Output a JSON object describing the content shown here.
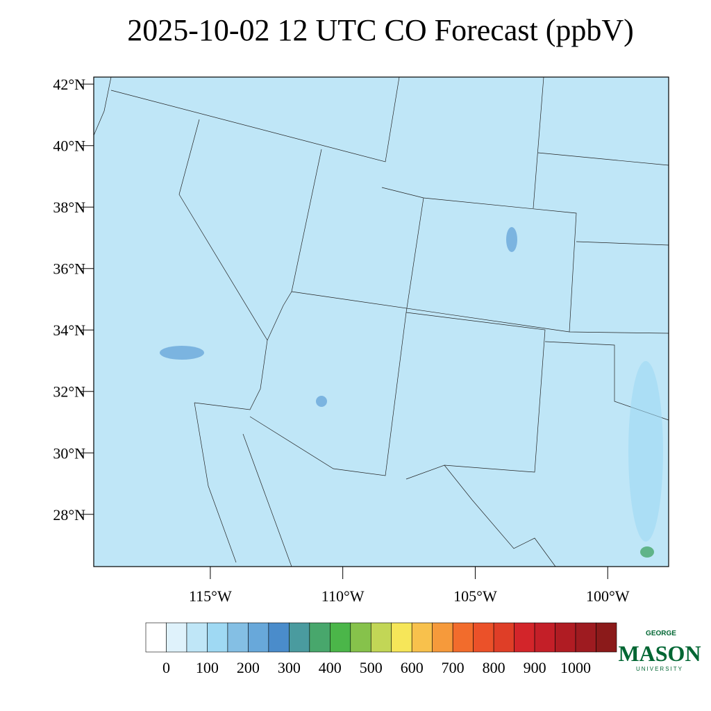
{
  "chart_data": {
    "type": "map",
    "title": "2025-10-02 12 UTC CO Forecast (ppbV)",
    "xlim": [
      -119.4,
      -97.7
    ],
    "ylim": [
      26.3,
      42.23
    ],
    "xticks": [
      {
        "value": -115,
        "label": "115°W"
      },
      {
        "value": -110,
        "label": "110°W"
      },
      {
        "value": -105,
        "label": "105°W"
      },
      {
        "value": -100,
        "label": "100°W"
      }
    ],
    "yticks": [
      {
        "value": 28,
        "label": "28°N"
      },
      {
        "value": 30,
        "label": "30°N"
      },
      {
        "value": 32,
        "label": "32°N"
      },
      {
        "value": 34,
        "label": "34°N"
      },
      {
        "value": 36,
        "label": "36°N"
      },
      {
        "value": 38,
        "label": "38°N"
      },
      {
        "value": 40,
        "label": "40°N"
      },
      {
        "value": 42,
        "label": "42°N"
      }
    ],
    "colorbar": {
      "levels": [
        0,
        50,
        100,
        150,
        200,
        250,
        300,
        350,
        400,
        450,
        500,
        550,
        600,
        650,
        700,
        750,
        800,
        850,
        900,
        950,
        1000,
        1050
      ],
      "colors": [
        "#ffffff",
        "#dff2fb",
        "#bfe6f7",
        "#9fd9f3",
        "#84bfe4",
        "#68a8da",
        "#4a8ccb",
        "#4a9b9f",
        "#48a76c",
        "#4bb649",
        "#86c24b",
        "#c2d656",
        "#f6e659",
        "#f8c14c",
        "#f69a3b",
        "#f26c2c",
        "#eb5129",
        "#df3e27",
        "#d3252a",
        "#c41f28",
        "#b01c23",
        "#9e1b20",
        "#8b1a1a"
      ],
      "ticks": [
        0,
        100,
        200,
        300,
        400,
        500,
        600,
        700,
        800,
        900,
        1000
      ]
    }
  },
  "logo": {
    "top": "GEORGE",
    "main": "MASON",
    "bottom": "UNIVERSITY"
  }
}
